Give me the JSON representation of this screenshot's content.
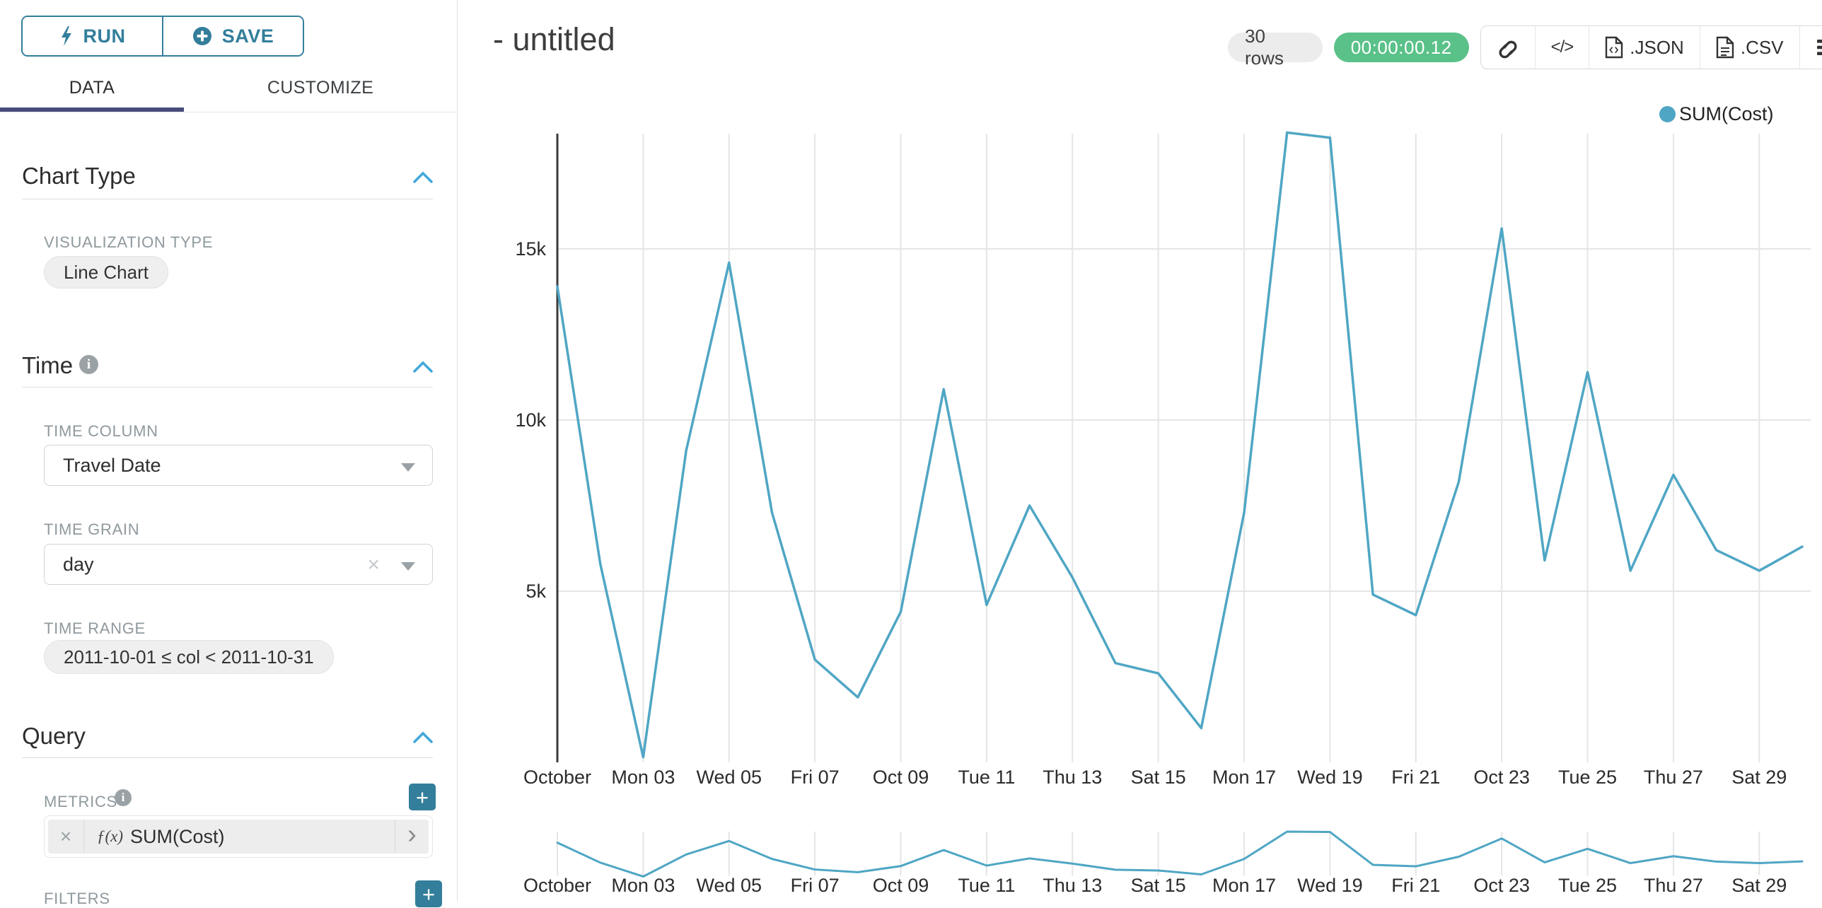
{
  "colors": {
    "accent_teal": "#337e9b",
    "tab_underline": "#484c7a",
    "timer_green": "#5ac189",
    "series_line": "#4fa6c4",
    "gridline": "#e5e5e5",
    "axis_line": "#3b3b3b"
  },
  "icons": {
    "close": "×",
    "chevron_right": "›",
    "info": "i",
    "plus": "+"
  },
  "sidebar": {
    "run_button": "RUN",
    "save_button": "SAVE",
    "tabs": [
      {
        "label": "DATA",
        "active": true
      },
      {
        "label": "CUSTOMIZE",
        "active": false
      }
    ],
    "chart_type": {
      "title": "Chart Type",
      "visualization_type_label": "VISUALIZATION TYPE",
      "visualization_type_value": "Line Chart"
    },
    "time": {
      "title": "Time",
      "time_column_label": "TIME COLUMN",
      "time_column_value": "Travel Date",
      "time_grain_label": "TIME GRAIN",
      "time_grain_value": "day",
      "time_range_label": "TIME RANGE",
      "time_range_value": "2011-10-01 ≤ col < 2011-10-31"
    },
    "query": {
      "title": "Query",
      "metrics_label": "METRICS",
      "metric_prefix": "ƒ(x)",
      "metric_value": "SUM(Cost)",
      "filters_label": "FILTERS"
    }
  },
  "header": {
    "title": "- untitled",
    "row_count": "30 rows",
    "timer": "00:00:00.12",
    "code_button": "</>",
    "export_json_label": ".JSON",
    "export_csv_label": ".CSV"
  },
  "chart_data": {
    "type": "line",
    "title": "",
    "legend": [
      {
        "label": "SUM(Cost)",
        "color": "#4fa6c4"
      }
    ],
    "x": [
      "2011-10-01",
      "2011-10-02",
      "2011-10-03",
      "2011-10-04",
      "2011-10-05",
      "2011-10-06",
      "2011-10-07",
      "2011-10-08",
      "2011-10-09",
      "2011-10-10",
      "2011-10-11",
      "2011-10-12",
      "2011-10-13",
      "2011-10-14",
      "2011-10-15",
      "2011-10-16",
      "2011-10-17",
      "2011-10-18",
      "2011-10-19",
      "2011-10-20",
      "2011-10-21",
      "2011-10-22",
      "2011-10-23",
      "2011-10-24",
      "2011-10-25",
      "2011-10-26",
      "2011-10-27",
      "2011-10-28",
      "2011-10-29",
      "2011-10-30"
    ],
    "series": [
      {
        "name": "SUM(Cost)",
        "values": [
          13900,
          5800,
          150,
          9100,
          14600,
          7300,
          3000,
          1900,
          4400,
          10900,
          4600,
          7500,
          5400,
          2900,
          2600,
          1000,
          7300,
          18400,
          18250,
          4900,
          4300,
          8200,
          15600,
          5900,
          11400,
          5600,
          8400,
          6200,
          5600,
          6300
        ]
      }
    ],
    "x_tick_labels": [
      "October",
      "Mon 03",
      "Wed 05",
      "Fri 07",
      "Oct 09",
      "Tue 11",
      "Thu 13",
      "Sat 15",
      "Mon 17",
      "Wed 19",
      "Fri 21",
      "Oct 23",
      "Tue 25",
      "Thu 27",
      "Sat 29"
    ],
    "y_ticks": [
      5000,
      10000,
      15000
    ],
    "y_tick_labels": [
      "5k",
      "10k",
      "15k"
    ],
    "ylim": [
      0,
      18400
    ],
    "xlabel": "",
    "ylabel": "",
    "grid": true,
    "legend_position": "top-right",
    "has_range_selector_minichart": true
  }
}
